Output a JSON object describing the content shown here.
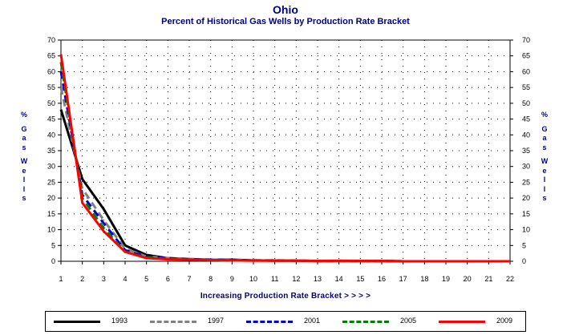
{
  "title": "Ohio",
  "subtitle": "Percent of Historical Gas Wells by Production Rate Bracket",
  "ylabel_chars": [
    "%",
    "G",
    "a",
    "s",
    "W",
    "e",
    "l",
    "l",
    "s"
  ],
  "chart_data": {
    "type": "line",
    "title": "Ohio",
    "subtitle": "Percent of Historical Gas Wells by Production Rate Bracket",
    "xlabel": "Increasing Production Rate Bracket > > > >",
    "ylabel": "% Gas Wells",
    "x": [
      1,
      2,
      3,
      4,
      5,
      6,
      7,
      8,
      9,
      10,
      11,
      12,
      13,
      14,
      15,
      16,
      17,
      18,
      19,
      20,
      21,
      22
    ],
    "xlim": [
      1,
      22
    ],
    "ylim": [
      0,
      70
    ],
    "yticks": [
      0,
      5,
      10,
      15,
      20,
      25,
      30,
      35,
      40,
      45,
      50,
      55,
      60,
      65,
      70
    ],
    "grid": true,
    "legend_position": "bottom",
    "series": [
      {
        "name": "1993",
        "color": "#000000",
        "dash": "solid",
        "values": [
          48,
          26,
          16.5,
          5,
          2,
          1,
          0.7,
          0.5,
          0.5,
          0.3,
          0.2,
          0.2,
          0.1,
          0.1,
          0.1,
          0.1,
          0,
          0,
          0,
          0,
          0,
          0
        ]
      },
      {
        "name": "1997",
        "color": "#808080",
        "dash": "dashed",
        "values": [
          55,
          23,
          13,
          4,
          1.5,
          1,
          0.7,
          0.5,
          0.4,
          0.3,
          0.3,
          0.2,
          0.1,
          0.1,
          0.1,
          0.1,
          0,
          0,
          0,
          0,
          0,
          0
        ]
      },
      {
        "name": "2001",
        "color": "#0000cc",
        "dash": "dashed",
        "values": [
          60,
          21,
          12,
          3.5,
          1.5,
          1,
          0.6,
          0.5,
          0.4,
          0.3,
          0.3,
          0.2,
          0.1,
          0.1,
          0.1,
          0.1,
          0,
          0,
          0,
          0,
          0,
          0
        ]
      },
      {
        "name": "2005",
        "color": "#008000",
        "dash": "dashed",
        "values": [
          63,
          20,
          10.5,
          3,
          1.2,
          0.8,
          0.5,
          0.4,
          0.3,
          0.3,
          0.2,
          0.2,
          0.1,
          0.1,
          0.1,
          0.1,
          0,
          0,
          0,
          0,
          0,
          0
        ]
      },
      {
        "name": "2009",
        "color": "#ff0000",
        "dash": "solid",
        "values": [
          65.5,
          18.5,
          9.5,
          3,
          1,
          0.6,
          0.5,
          0.4,
          0.3,
          0.2,
          0.2,
          0.2,
          0.1,
          0.2,
          0.1,
          0.1,
          0,
          0,
          0,
          0,
          0,
          0
        ]
      }
    ]
  }
}
